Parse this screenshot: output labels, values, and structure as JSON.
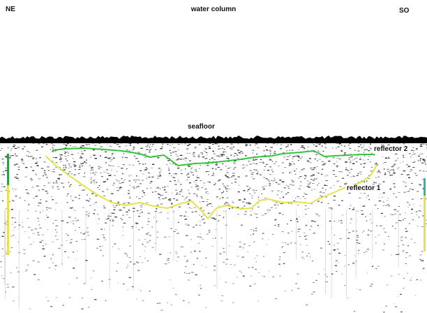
{
  "labels": {
    "left_direction": "NE",
    "right_direction": "SO",
    "water_column": "water column",
    "seafloor": "seafloor",
    "reflector_2": "reflector 2",
    "reflector_1": "reflector 1"
  },
  "colors": {
    "reflector_2": "#34c43c",
    "reflector_1": "#e8e24a",
    "seafloor_dark": "#000000",
    "side_marker_teal": "#2fb7a6",
    "side_marker_yellow": "#e8e24a",
    "side_marker_green": "#2e9c46"
  }
}
